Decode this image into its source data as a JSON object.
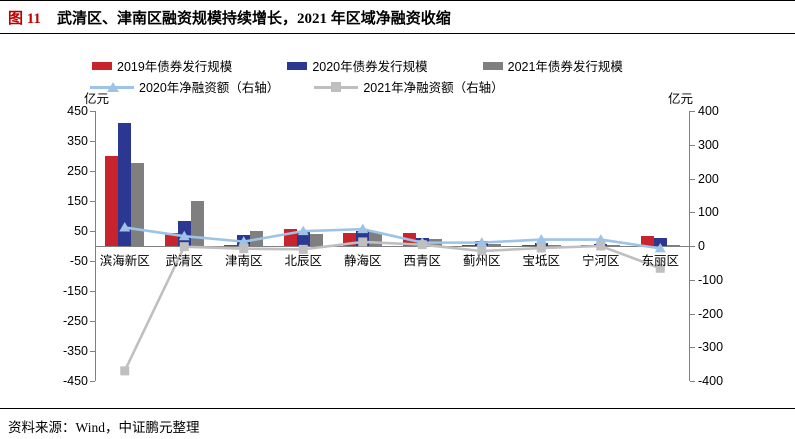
{
  "header": {
    "figure_label": "图 11",
    "title": "武清区、津南区融资规模持续增长，2021 年区域净融资收缩"
  },
  "footer": {
    "source": "资料来源：Wind，中证鹏元整理"
  },
  "colors": {
    "title_red": "#C00000",
    "bar_2019": "#C9232B",
    "bar_2020": "#2C3792",
    "bar_2021": "#7F7F7F",
    "line_2020": "#9DC3E6",
    "line_2021": "#BFBFBF",
    "axis": "#808080",
    "text": "#000000"
  },
  "chart_data": {
    "type": "bar+line",
    "title": "武清区、津南区融资规模持续增长，2021 年区域净融资收缩",
    "categories": [
      "滨海新区",
      "武清区",
      "津南区",
      "北辰区",
      "静海区",
      "西青区",
      "蓟州区",
      "宝坻区",
      "宁河区",
      "东丽区"
    ],
    "left_axis": {
      "unit": "亿元",
      "min": -450,
      "max": 450,
      "step": 100
    },
    "right_axis": {
      "unit": "亿元",
      "min": -400,
      "max": 400,
      "step": 100
    },
    "bar_series": [
      {
        "name": "2019年债券发行规模",
        "color": "bar_2019",
        "axis": "left",
        "values": [
          300,
          45,
          5,
          57,
          45,
          45,
          5,
          5,
          4,
          35
        ]
      },
      {
        "name": "2020年债券发行规模",
        "color": "bar_2020",
        "axis": "left",
        "values": [
          410,
          82,
          36,
          50,
          49,
          27,
          18,
          9,
          6,
          26
        ]
      },
      {
        "name": "2021年债券发行规模",
        "color": "bar_2021",
        "axis": "left",
        "values": [
          277,
          150,
          50,
          40,
          46,
          23,
          8,
          5,
          5,
          4
        ]
      }
    ],
    "line_series": [
      {
        "name": "2020年净融资额（右轴）",
        "color": "line_2020",
        "marker": "triangle",
        "axis": "right",
        "values": [
          55,
          29,
          13,
          44,
          50,
          10,
          10,
          19,
          19,
          -7
        ]
      },
      {
        "name": "2021年净融资额（右轴）",
        "color": "line_2021",
        "marker": "square",
        "axis": "right",
        "values": [
          -370,
          -2,
          -8,
          -10,
          12,
          4,
          -15,
          -6,
          0,
          -66
        ]
      }
    ],
    "legend_position": "top",
    "grid": "off"
  }
}
